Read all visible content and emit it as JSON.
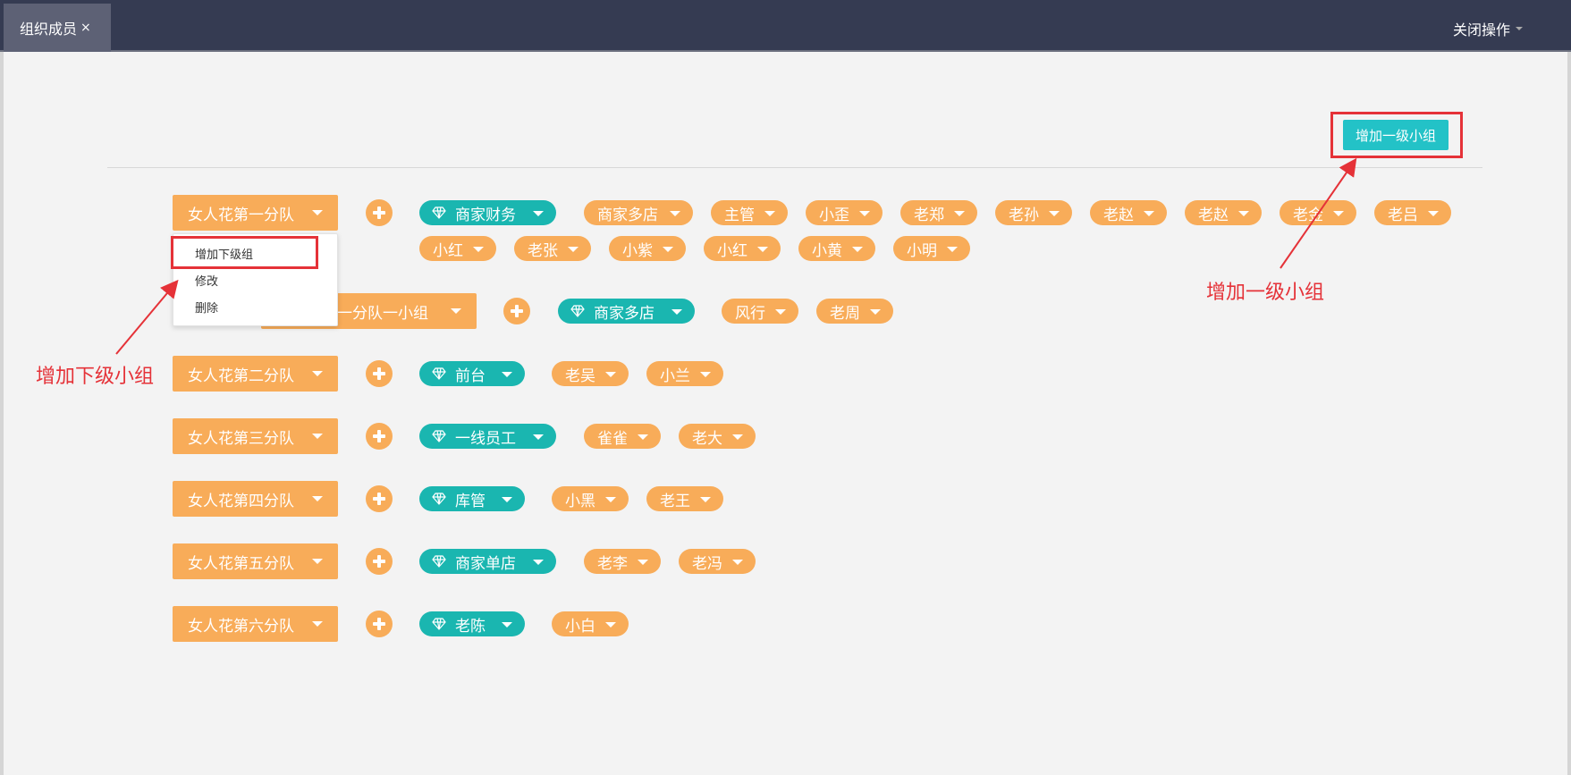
{
  "tab": {
    "label": "组织成员",
    "close": "×"
  },
  "header": {
    "close_ops": "关闭操作"
  },
  "add_top_button": "增加一级小组",
  "groups": [
    {
      "name": "女人花第一分队",
      "leader": "商家财务",
      "members": [
        "商家多店",
        "主管",
        "小歪",
        "老郑",
        "老孙",
        "老赵",
        "老赵",
        "老金",
        "老吕",
        "小红",
        "老张",
        "小紫",
        "小红",
        "小黄",
        "小明"
      ]
    },
    {
      "name": "女人花第一分队一小组",
      "leader": "商家多店",
      "members": [
        "风行",
        "老周"
      ]
    },
    {
      "name": "女人花第二分队",
      "leader": "前台",
      "members": [
        "老吴",
        "小兰"
      ]
    },
    {
      "name": "女人花第三分队",
      "leader": "一线员工",
      "members": [
        "雀雀",
        "老大"
      ]
    },
    {
      "name": "女人花第四分队",
      "leader": "库管",
      "members": [
        "小黑",
        "老王"
      ]
    },
    {
      "name": "女人花第五分队",
      "leader": "商家单店",
      "members": [
        "老李",
        "老冯"
      ]
    },
    {
      "name": "女人花第六分队",
      "leader": "老陈",
      "members": [
        "小白"
      ]
    }
  ],
  "dropdown": {
    "items": [
      "增加下级组",
      "修改",
      "删除"
    ]
  },
  "annotations": {
    "add_sub": "增加下级小组",
    "add_top": "增加一级小组"
  },
  "colors": {
    "orange": "#f8ac59",
    "teal": "#1ab6b0",
    "header": "#353b52",
    "annotation": "#e53238"
  }
}
